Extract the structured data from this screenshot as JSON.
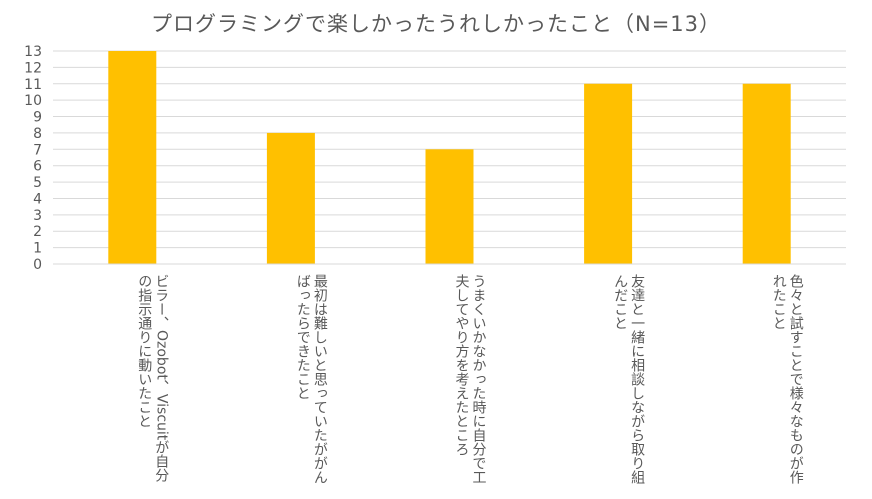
{
  "chart_data": {
    "type": "bar",
    "title": "プログラミングで楽しかったうれしかったこと（N=13）",
    "categories": [
      "ビラー、Ozobot、Viscuitが自分の指示通りに動いたこと",
      "最初は難しいと思っていたががんばったらできたこと",
      "うまくいかなかった時に自分で工夫してやり方を考えたところ",
      "友達と一緒に相談しながら取り組んだこと",
      "色々と試すことで様々なものが作れたこと"
    ],
    "values": [
      13,
      8,
      7,
      11,
      11
    ],
    "ylim": [
      0,
      13
    ],
    "yticks": [
      "0",
      "1",
      "2",
      "3",
      "4",
      "5",
      "6",
      "7",
      "8",
      "9",
      "10",
      "11",
      "12",
      "13"
    ],
    "bar_color": "#FFC000",
    "grid_color": "#D9D9D9",
    "grid": true,
    "legend": "none"
  }
}
